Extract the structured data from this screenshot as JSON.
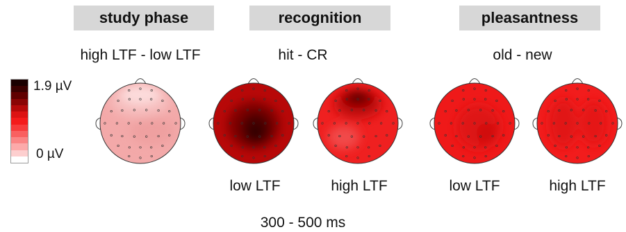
{
  "headers": {
    "study_phase": "study phase",
    "recognition": "recognition",
    "pleasantness": "pleasantness"
  },
  "contrasts": {
    "study": "high LTF - low LTF",
    "recognition": "hit - CR",
    "pleasantness": "old - new"
  },
  "colorbar": {
    "max_label": "1.9 µV",
    "min_label": "0 µV",
    "colors": [
      "#1a0000",
      "#3a0000",
      "#600000",
      "#8a0505",
      "#b50a0a",
      "#dc1313",
      "#f41b1b",
      "#f73b3b",
      "#f96060",
      "#fa8585",
      "#fcaaaa",
      "#fdcfcf",
      "#ffffff"
    ]
  },
  "maps": [
    {
      "id": "study",
      "label": "",
      "base": "#f3a9a9",
      "blobs": [
        {
          "c": "#f6bdbd",
          "rx": 0.75,
          "ry": 0.4,
          "dx": 0,
          "dy": -0.55
        },
        {
          "c": "#fcdcdc",
          "rx": 0.5,
          "ry": 0.25,
          "dx": 0,
          "dy": -0.72
        },
        {
          "c": "#efa0a0",
          "rx": 0.55,
          "ry": 0.35,
          "dx": 0.3,
          "dy": 0.2
        }
      ]
    },
    {
      "id": "recog-low",
      "label": "low LTF",
      "base": "#b80808",
      "blobs": [
        {
          "c": "#800202",
          "rx": 0.65,
          "ry": 0.6,
          "dx": 0,
          "dy": 0.05
        },
        {
          "c": "#4a0000",
          "rx": 0.38,
          "ry": 0.4,
          "dx": 0.05,
          "dy": 0.12
        },
        {
          "c": "#200000",
          "rx": 0.14,
          "ry": 0.16,
          "dx": 0.05,
          "dy": 0.22
        }
      ]
    },
    {
      "id": "recog-high",
      "label": "high LTF",
      "base": "#ef2020",
      "blobs": [
        {
          "c": "#c60b0b",
          "rx": 0.6,
          "ry": 0.38,
          "dx": 0,
          "dy": -0.48
        },
        {
          "c": "#8a0303",
          "rx": 0.38,
          "ry": 0.22,
          "dx": 0,
          "dy": -0.6
        },
        {
          "c": "#4d0000",
          "rx": 0.2,
          "ry": 0.1,
          "dx": 0,
          "dy": -0.66
        },
        {
          "c": "#f14a4a",
          "rx": 0.4,
          "ry": 0.3,
          "dx": -0.35,
          "dy": 0.35
        }
      ]
    },
    {
      "id": "pleas-low",
      "label": "low LTF",
      "base": "#ef1919",
      "blobs": [
        {
          "c": "#df1212",
          "rx": 0.55,
          "ry": 0.55,
          "dx": 0.1,
          "dy": 0.1
        },
        {
          "c": "#cf0d0d",
          "rx": 0.25,
          "ry": 0.25,
          "dx": 0.3,
          "dy": 0.25
        }
      ]
    },
    {
      "id": "pleas-high",
      "label": "high LTF",
      "base": "#f21c1c",
      "blobs": [
        {
          "c": "#e11414",
          "rx": 0.35,
          "ry": 0.6,
          "dx": -0.35,
          "dy": 0
        },
        {
          "c": "#e51515",
          "rx": 0.35,
          "ry": 0.55,
          "dx": 0.4,
          "dy": 0
        }
      ]
    }
  ],
  "time_window": "300 - 500 ms"
}
